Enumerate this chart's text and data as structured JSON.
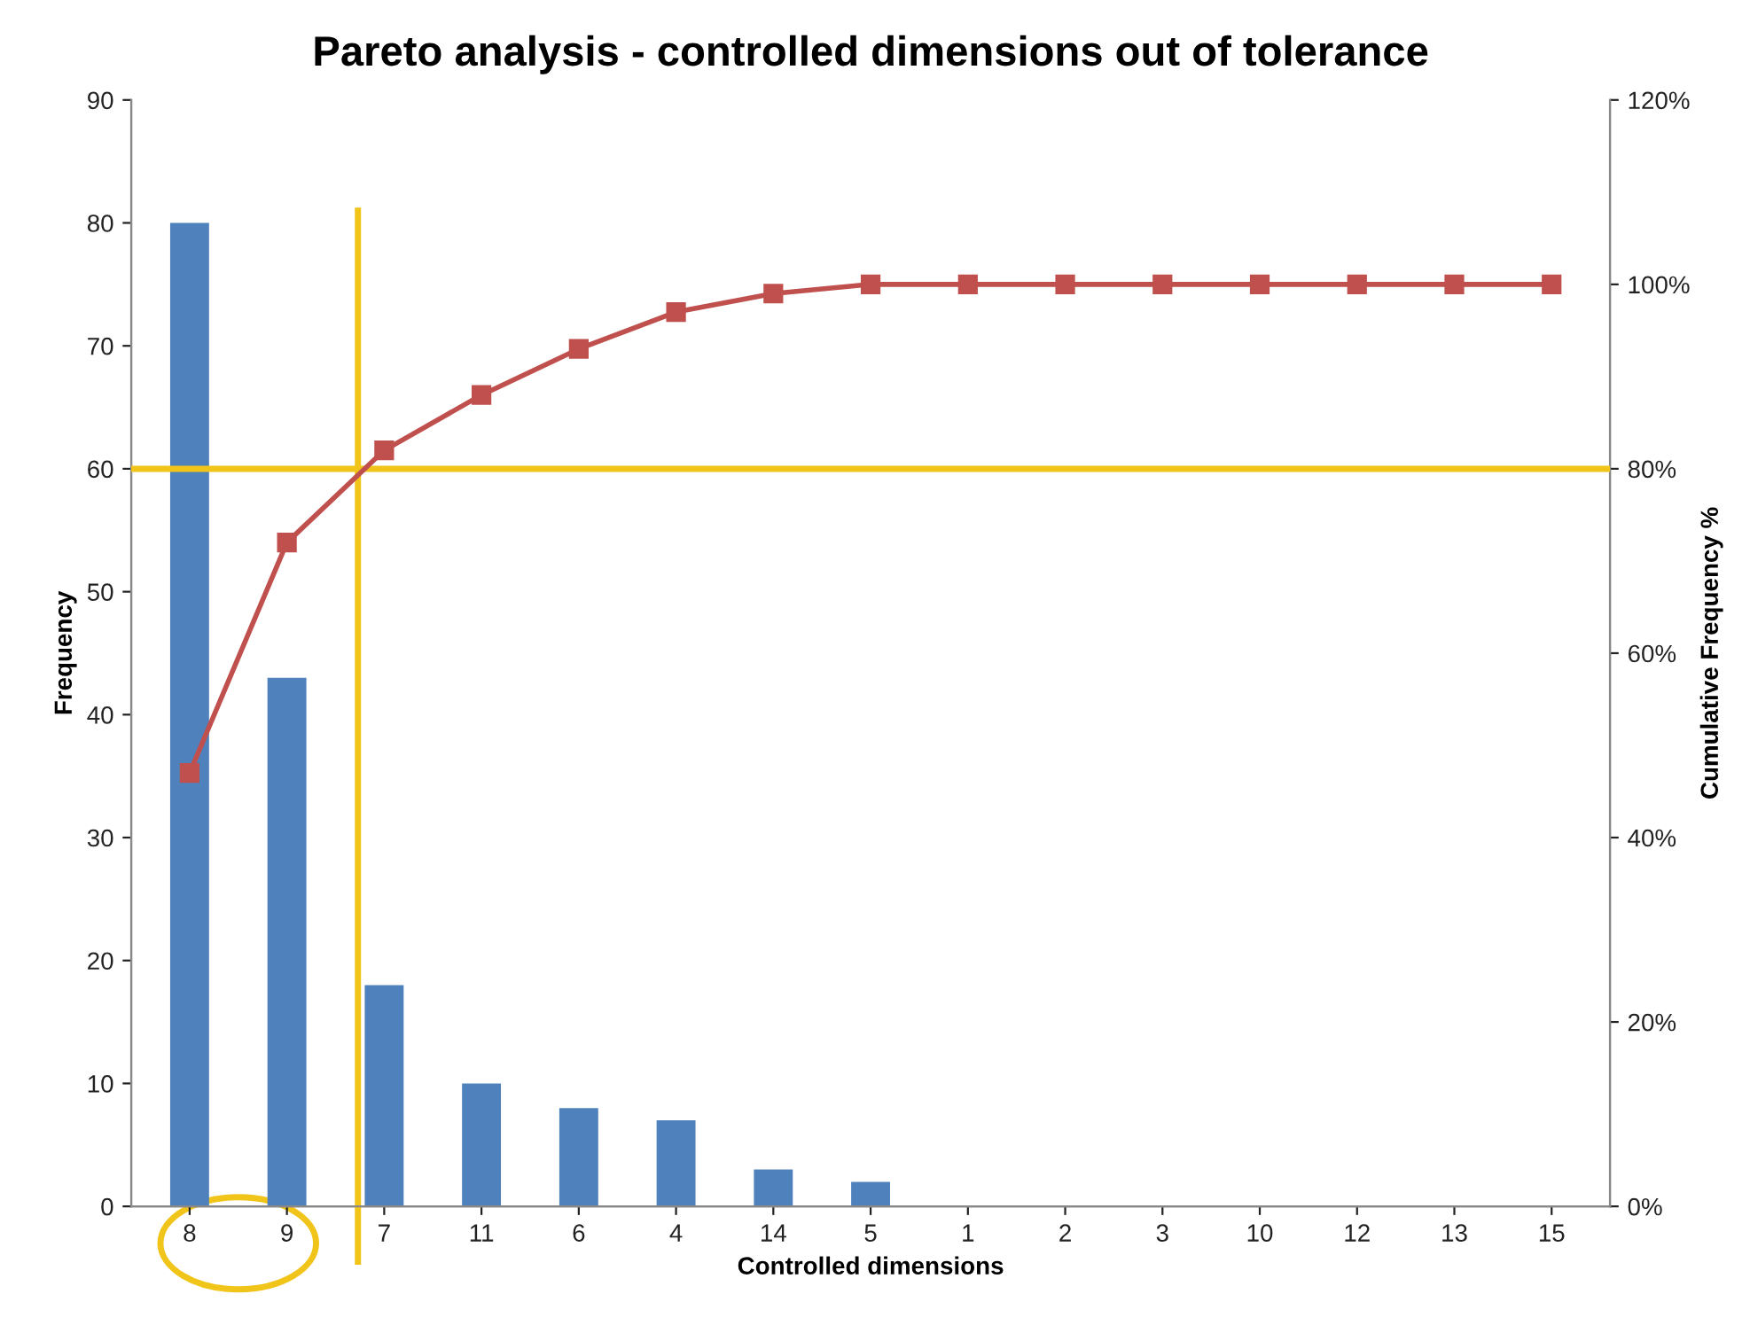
{
  "chart_data": {
    "type": "bar",
    "title": "Pareto analysis - controlled dimensions out of tolerance",
    "xlabel": "Controlled dimensions",
    "ylabel": "Frequency",
    "y2label": "Cumulative Frequency %",
    "categories": [
      "8",
      "9",
      "7",
      "11",
      "6",
      "4",
      "14",
      "5",
      "1",
      "2",
      "3",
      "10",
      "12",
      "13",
      "15"
    ],
    "series": [
      {
        "color": "#4f81bd",
        "values": [
          80,
          43,
          18,
          10,
          8,
          7,
          3,
          2,
          0,
          0,
          0,
          0,
          0,
          0,
          0
        ]
      },
      {
        "type": "line",
        "axis": "y2",
        "color": "#c0504d",
        "marker": "square",
        "line_style": "solid",
        "values": [
          47,
          72,
          82,
          88,
          93,
          97,
          99,
          100,
          100,
          100,
          100,
          100,
          100,
          100,
          100
        ]
      }
    ],
    "ylim": [
      0,
      90
    ],
    "yticks": [
      0,
      10,
      20,
      30,
      40,
      50,
      60,
      70,
      80,
      90
    ],
    "y2lim": [
      0,
      120
    ],
    "y2ticks": [
      {
        "value": 0,
        "label": "0%"
      },
      {
        "value": 20,
        "label": "20%"
      },
      {
        "value": 40,
        "label": "40%"
      },
      {
        "value": 60,
        "label": "60%"
      },
      {
        "value": 80,
        "label": "80%"
      },
      {
        "value": 100,
        "label": "100%"
      },
      {
        "value": 120,
        "label": "120%"
      }
    ],
    "ref_lines": [
      {
        "axis": "y2",
        "value": 80,
        "color": "#f0c419"
      },
      {
        "axis": "x",
        "value": "7",
        "color": "#f0c419"
      }
    ],
    "grid": false,
    "legend": false
  }
}
